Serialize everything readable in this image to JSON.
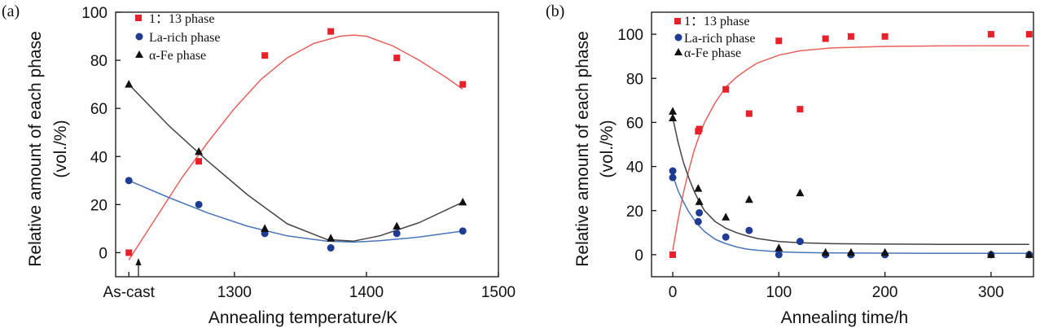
{
  "colors": {
    "phase_113": "#e8202a",
    "la_rich": "#1f3b93",
    "alpha_fe": "#111111",
    "fit_113": "#e8605e",
    "fit_la": "#4a74b8",
    "fit_fe": "#444444"
  },
  "chart_data": [
    {
      "type": "scatter",
      "panel_label": "(a)",
      "xlabel": "Annealing temperature/K",
      "ylabel_line1": "Relative amount of each phase",
      "ylabel_line2": "(vol./%)",
      "xlim": [
        1210,
        1500
      ],
      "ylim": [
        -10,
        100
      ],
      "x_ticks": [
        {
          "value": 1220,
          "label": "As-cast"
        },
        {
          "value": 1300,
          "label": "1300"
        },
        {
          "value": 1400,
          "label": "1400"
        },
        {
          "value": 1500,
          "label": "1500"
        }
      ],
      "y_ticks": [
        0,
        20,
        40,
        60,
        80,
        100
      ],
      "legend_position": "top-left",
      "annotation": "arrow under As-cast",
      "series": [
        {
          "name": "1：13 phase",
          "marker": "square",
          "color_key": "phase_113",
          "x": [
            1220,
            1273,
            1323,
            1373,
            1423,
            1473
          ],
          "y": [
            0,
            38,
            82,
            92,
            81,
            70
          ]
        },
        {
          "name": "La-rich phase",
          "marker": "circle",
          "color_key": "la_rich",
          "x": [
            1220,
            1273,
            1323,
            1373,
            1423,
            1473
          ],
          "y": [
            30,
            20,
            8,
            2,
            8,
            9
          ]
        },
        {
          "name": "α-Fe phase",
          "marker": "triangle",
          "color_key": "alpha_fe",
          "x": [
            1220,
            1273,
            1323,
            1373,
            1423,
            1473
          ],
          "y": [
            70,
            42,
            10,
            6,
            11,
            21
          ]
        }
      ],
      "fit_curves": [
        {
          "color_key": "fit_113",
          "x": [
            1220,
            1240,
            1260,
            1280,
            1300,
            1320,
            1340,
            1360,
            1380,
            1390,
            1400,
            1420,
            1440,
            1460,
            1473
          ],
          "y": [
            -3,
            14,
            31,
            46,
            60,
            72,
            81,
            87,
            90,
            90.5,
            90,
            86,
            80,
            73,
            68
          ]
        },
        {
          "color_key": "fit_la",
          "x": [
            1220,
            1250,
            1280,
            1310,
            1340,
            1370,
            1390,
            1410,
            1440,
            1473
          ],
          "y": [
            30,
            23,
            16.5,
            11,
            7,
            4.8,
            4.4,
            5,
            6.5,
            9
          ]
        },
        {
          "color_key": "fit_fe",
          "x": [
            1220,
            1250,
            1280,
            1310,
            1340,
            1370,
            1390,
            1410,
            1440,
            1473
          ],
          "y": [
            70,
            53,
            38,
            24,
            12,
            5.5,
            4.8,
            7,
            12.5,
            21
          ]
        }
      ]
    },
    {
      "type": "scatter",
      "panel_label": "(b)",
      "xlabel": "Annealing time/h",
      "ylabel_line1": "Relative amount of each phase",
      "ylabel_line2": "(vol./%)",
      "xlim": [
        -20,
        340
      ],
      "ylim": [
        -10,
        110
      ],
      "x_ticks": [
        {
          "value": 0,
          "label": "0"
        },
        {
          "value": 100,
          "label": "100"
        },
        {
          "value": 200,
          "label": "200"
        },
        {
          "value": 300,
          "label": "300"
        }
      ],
      "y_ticks": [
        0,
        20,
        40,
        60,
        80,
        100
      ],
      "legend_position": "top-left",
      "series": [
        {
          "name": "1：13 phase",
          "marker": "square",
          "color_key": "phase_113",
          "x": [
            0,
            24,
            25,
            50,
            72,
            100,
            120,
            144,
            168,
            200,
            300,
            336
          ],
          "y": [
            0,
            56,
            57,
            75,
            64,
            97,
            66,
            98,
            99,
            99,
            100,
            100
          ]
        },
        {
          "name": "La-rich phase",
          "marker": "circle",
          "color_key": "la_rich",
          "x": [
            0,
            0,
            24,
            25,
            50,
            72,
            100,
            120,
            144,
            168,
            200,
            300,
            336
          ],
          "y": [
            38,
            35,
            15,
            19,
            8,
            11,
            0,
            6,
            0,
            0,
            0,
            0,
            0
          ]
        },
        {
          "name": "α-Fe phase",
          "marker": "triangle",
          "color_key": "alpha_fe",
          "x": [
            0,
            0,
            24,
            25,
            50,
            72,
            100,
            120,
            144,
            168,
            200,
            300,
            336
          ],
          "y": [
            65,
            62,
            30,
            24,
            17,
            25,
            3,
            28,
            1,
            1,
            1,
            0,
            0
          ]
        }
      ],
      "fit_curves": [
        {
          "color_key": "fit_113",
          "x": [
            0,
            5,
            10,
            15,
            20,
            25,
            30,
            40,
            50,
            60,
            70,
            80,
            100,
            120,
            150,
            200,
            250,
            300,
            336
          ],
          "y": [
            2,
            16,
            28,
            38,
            47,
            54,
            60,
            69,
            76,
            80.5,
            84,
            87,
            90.5,
            92.5,
            93.8,
            94.5,
            94.7,
            94.8,
            94.8
          ]
        },
        {
          "color_key": "fit_la",
          "x": [
            0,
            5,
            10,
            15,
            20,
            25,
            30,
            40,
            50,
            60,
            70,
            80,
            100,
            120,
            150,
            200,
            250,
            300,
            336
          ],
          "y": [
            36,
            29,
            24,
            19.5,
            16,
            13,
            10.5,
            7,
            5,
            3.5,
            2.5,
            2,
            1.3,
            1,
            0.8,
            0.7,
            0.6,
            0.6,
            0.6
          ]
        },
        {
          "color_key": "fit_fe",
          "x": [
            0,
            5,
            10,
            15,
            20,
            25,
            30,
            40,
            50,
            60,
            70,
            80,
            100,
            120,
            150,
            200,
            250,
            300,
            336
          ],
          "y": [
            62,
            51,
            42,
            35,
            29,
            24,
            20,
            15,
            12,
            10,
            8.5,
            7.3,
            6,
            5.4,
            5,
            4.8,
            4.7,
            4.7,
            4.7
          ]
        }
      ]
    }
  ]
}
